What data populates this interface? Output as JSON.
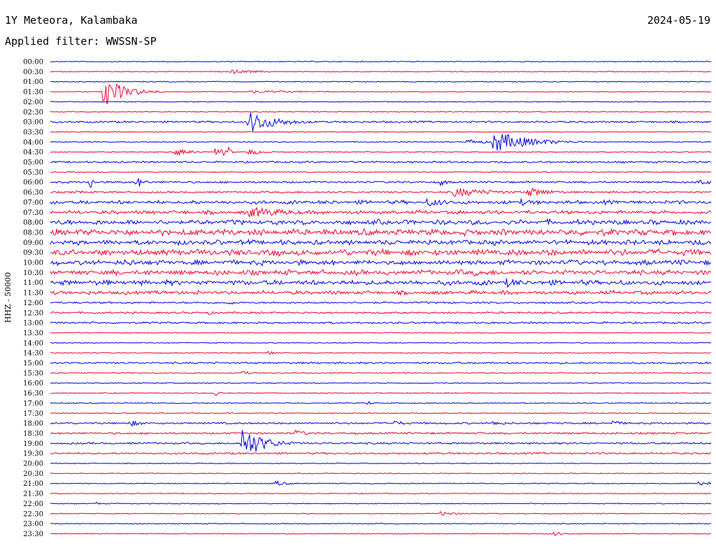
{
  "header": {
    "station": "1Y Meteora, Kalambaka",
    "filter_label": "Applied filter: WWSSN-SP",
    "date": "2024-05-19"
  },
  "colors": {
    "even_trace": "#0000e0",
    "odd_trace": "#ee0033"
  },
  "chart_data": {
    "type": "line",
    "title": "1Y Meteora, Kalambaka",
    "ylabel": "HHZ - 50000",
    "xlabel": "",
    "row_labels": [
      "00:00",
      "00:30",
      "01:00",
      "01:30",
      "02:00",
      "02:30",
      "03:00",
      "03:30",
      "04:00",
      "04:30",
      "05:00",
      "05:30",
      "06:00",
      "06:30",
      "07:00",
      "07:30",
      "08:00",
      "08:30",
      "09:00",
      "09:30",
      "10:00",
      "10:30",
      "11:00",
      "11:30",
      "12:00",
      "12:30",
      "13:00",
      "13:30",
      "14:00",
      "14:30",
      "15:00",
      "15:30",
      "16:00",
      "16:30",
      "17:00",
      "17:30",
      "18:00",
      "18:30",
      "19:00",
      "19:30",
      "20:00",
      "20:30",
      "21:00",
      "21:30",
      "22:00",
      "22:30",
      "23:00",
      "23:30"
    ],
    "trace_colors": [
      "blue",
      "red"
    ],
    "noise_level": [
      1,
      1,
      1,
      1,
      1,
      1,
      2,
      1,
      1,
      1,
      2,
      1,
      2,
      2,
      3,
      3,
      4,
      5,
      4,
      5,
      4,
      4,
      4,
      3,
      2,
      2,
      2,
      1,
      1,
      1,
      2,
      1,
      1,
      1,
      1,
      1,
      2,
      2,
      2,
      2,
      1,
      1,
      1,
      1,
      1,
      1,
      1,
      1
    ],
    "events": [
      {
        "row": 1,
        "x": 0.27,
        "amp": 3,
        "dur": 0.05
      },
      {
        "row": 3,
        "x": 0.08,
        "amp": 22,
        "dur": 0.03
      },
      {
        "row": 3,
        "x": 0.3,
        "amp": 2,
        "dur": 0.12
      },
      {
        "row": 6,
        "x": 0.3,
        "amp": 16,
        "dur": 0.04
      },
      {
        "row": 8,
        "x": 0.67,
        "amp": 16,
        "dur": 0.05
      },
      {
        "row": 8,
        "x": 0.63,
        "amp": 4,
        "dur": 0.03
      },
      {
        "row": 9,
        "x": 0.19,
        "amp": 6,
        "dur": 0.02
      },
      {
        "row": 9,
        "x": 0.25,
        "amp": 8,
        "dur": 0.004
      },
      {
        "row": 9,
        "x": 0.26,
        "amp": 8,
        "dur": 0.004
      },
      {
        "row": 9,
        "x": 0.27,
        "amp": 8,
        "dur": 0.004
      },
      {
        "row": 9,
        "x": 0.3,
        "amp": 5,
        "dur": 0.02
      },
      {
        "row": 12,
        "x": 0.06,
        "amp": 14,
        "dur": 0.004
      },
      {
        "row": 12,
        "x": 0.13,
        "amp": 10,
        "dur": 0.01
      },
      {
        "row": 12,
        "x": 0.59,
        "amp": 6,
        "dur": 0.01
      },
      {
        "row": 12,
        "x": 0.98,
        "amp": 6,
        "dur": 0.02
      },
      {
        "row": 13,
        "x": 0.04,
        "amp": 4,
        "dur": 0.01
      },
      {
        "row": 13,
        "x": 0.61,
        "amp": 7,
        "dur": 0.06
      },
      {
        "row": 13,
        "x": 0.72,
        "amp": 7,
        "dur": 0.04
      },
      {
        "row": 14,
        "x": 0.57,
        "amp": 7,
        "dur": 0.03
      },
      {
        "row": 14,
        "x": 0.71,
        "amp": 6,
        "dur": 0.02
      },
      {
        "row": 15,
        "x": 0.3,
        "amp": 8,
        "dur": 0.07
      },
      {
        "row": 19,
        "x": 0.58,
        "amp": 6,
        "dur": 0.01
      },
      {
        "row": 20,
        "x": 0.12,
        "amp": 5,
        "dur": 0.03
      },
      {
        "row": 21,
        "x": 0.64,
        "amp": 6,
        "dur": 0.02
      },
      {
        "row": 22,
        "x": 0.69,
        "amp": 7,
        "dur": 0.03
      },
      {
        "row": 23,
        "x": 0.19,
        "amp": 5,
        "dur": 0.01
      },
      {
        "row": 24,
        "x": 0.27,
        "amp": 4,
        "dur": 0.01
      },
      {
        "row": 25,
        "x": 0.24,
        "amp": 4,
        "dur": 0.004
      },
      {
        "row": 29,
        "x": 0.33,
        "amp": 4,
        "dur": 0.01
      },
      {
        "row": 31,
        "x": 0.29,
        "amp": 4,
        "dur": 0.01
      },
      {
        "row": 33,
        "x": 0.25,
        "amp": 10,
        "dur": 0.005
      },
      {
        "row": 34,
        "x": 0.48,
        "amp": 4,
        "dur": 0.005
      },
      {
        "row": 36,
        "x": 0.12,
        "amp": 5,
        "dur": 0.02
      },
      {
        "row": 36,
        "x": 0.52,
        "amp": 4,
        "dur": 0.02
      },
      {
        "row": 36,
        "x": 0.67,
        "amp": 4,
        "dur": 0.02
      },
      {
        "row": 36,
        "x": 0.85,
        "amp": 4,
        "dur": 0.02
      },
      {
        "row": 37,
        "x": 0.37,
        "amp": 5,
        "dur": 0.02
      },
      {
        "row": 38,
        "x": 0.29,
        "amp": 24,
        "dur": 0.03
      },
      {
        "row": 42,
        "x": 0.34,
        "amp": 4,
        "dur": 0.02
      },
      {
        "row": 42,
        "x": 0.98,
        "amp": 4,
        "dur": 0.02
      },
      {
        "row": 44,
        "x": 0.07,
        "amp": 3,
        "dur": 0.004
      },
      {
        "row": 45,
        "x": 0.59,
        "amp": 3,
        "dur": 0.03
      },
      {
        "row": 47,
        "x": 0.76,
        "amp": 3,
        "dur": 0.02
      }
    ]
  }
}
